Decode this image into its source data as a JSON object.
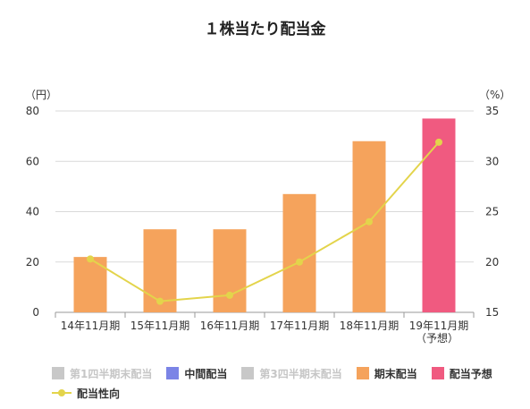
{
  "chart_data": {
    "type": "bar",
    "title": "１株当たり配当金",
    "left_unit": "（円）",
    "right_unit": "（%）",
    "categories": [
      {
        "line1": "14年11月期",
        "line2": ""
      },
      {
        "line1": "15年11月期",
        "line2": ""
      },
      {
        "line1": "16年11月期",
        "line2": ""
      },
      {
        "line1": "17年11月期",
        "line2": ""
      },
      {
        "line1": "18年11月期",
        "line2": ""
      },
      {
        "line1": "19年11月期",
        "line2": "（予想）"
      }
    ],
    "y_left": {
      "min": 0,
      "max": 80,
      "ticks": [
        0,
        20,
        40,
        60,
        80
      ]
    },
    "y_right": {
      "min": 15,
      "max": 35,
      "ticks": [
        15,
        20,
        25,
        30,
        35
      ]
    },
    "grid": true,
    "legend_position": "bottom",
    "series": [
      {
        "name": "第1四半期末配当",
        "type": "bar",
        "color": "#c8c8c8",
        "values": [
          null,
          null,
          null,
          null,
          null,
          null
        ],
        "active": false
      },
      {
        "name": "中間配当",
        "type": "bar",
        "color": "#7b84e6",
        "values": [
          null,
          null,
          null,
          null,
          null,
          null
        ],
        "active": true
      },
      {
        "name": "第3四半期末配当",
        "type": "bar",
        "color": "#c8c8c8",
        "values": [
          null,
          null,
          null,
          null,
          null,
          null
        ],
        "active": false
      },
      {
        "name": "期末配当",
        "type": "bar",
        "color": "#f5a35c",
        "values": [
          22,
          33,
          33,
          47,
          68,
          null
        ],
        "active": true
      },
      {
        "name": "配当予想",
        "type": "bar",
        "color": "#f05a80",
        "values": [
          null,
          null,
          null,
          null,
          null,
          77
        ],
        "active": true
      },
      {
        "name": "配当性向",
        "type": "line",
        "axis": "right",
        "color": "#e3d44b",
        "values": [
          20.3,
          16.1,
          16.7,
          20.0,
          24.0,
          31.9
        ],
        "active": true
      }
    ]
  }
}
